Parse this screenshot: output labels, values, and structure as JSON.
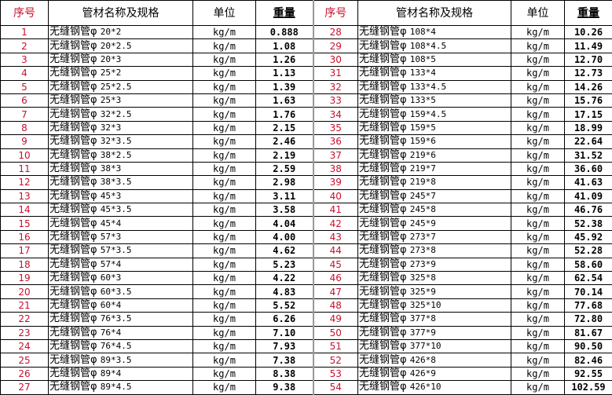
{
  "headers": {
    "seq": "序号",
    "name": "管材名称及规格",
    "unit": "单位",
    "weight": "重量"
  },
  "left": [
    {
      "seq": "1",
      "name": "无缝钢管φ",
      "spec": "20*2",
      "unit": "kg/m",
      "weight": "0.888"
    },
    {
      "seq": "2",
      "name": "无缝钢管φ",
      "spec": "20*2.5",
      "unit": "kg/m",
      "weight": "1.08"
    },
    {
      "seq": "3",
      "name": "无缝钢管φ",
      "spec": "20*3",
      "unit": "kg/m",
      "weight": "1.26"
    },
    {
      "seq": "4",
      "name": "无缝钢管φ",
      "spec": "25*2",
      "unit": "kg/m",
      "weight": "1.13"
    },
    {
      "seq": "5",
      "name": "无缝钢管φ",
      "spec": "25*2.5",
      "unit": "kg/m",
      "weight": "1.39"
    },
    {
      "seq": "6",
      "name": "无缝钢管φ",
      "spec": "25*3",
      "unit": "kg/m",
      "weight": "1.63"
    },
    {
      "seq": "7",
      "name": "无缝钢管φ",
      "spec": "32*2.5",
      "unit": "kg/m",
      "weight": "1.76"
    },
    {
      "seq": "8",
      "name": "无缝钢管φ",
      "spec": "32*3",
      "unit": "kg/m",
      "weight": "2.15"
    },
    {
      "seq": "9",
      "name": "无缝钢管φ",
      "spec": "32*3.5",
      "unit": "kg/m",
      "weight": "2.46"
    },
    {
      "seq": "10",
      "name": "无缝钢管φ",
      "spec": "38*2.5",
      "unit": "kg/m",
      "weight": "2.19"
    },
    {
      "seq": "11",
      "name": "无缝钢管φ",
      "spec": "38*3",
      "unit": "kg/m",
      "weight": "2.59"
    },
    {
      "seq": "12",
      "name": "无缝钢管φ",
      "spec": "38*3.5",
      "unit": "kg/m",
      "weight": "2.98"
    },
    {
      "seq": "13",
      "name": "无缝钢管φ",
      "spec": "45*3",
      "unit": "kg/m",
      "weight": "3.11"
    },
    {
      "seq": "14",
      "name": "无缝钢管φ",
      "spec": "45*3.5",
      "unit": "kg/m",
      "weight": "3.58"
    },
    {
      "seq": "15",
      "name": "无缝钢管φ",
      "spec": "45*4",
      "unit": "kg/m",
      "weight": "4.04"
    },
    {
      "seq": "16",
      "name": "无缝钢管φ",
      "spec": "57*3",
      "unit": "kg/m",
      "weight": "4.00"
    },
    {
      "seq": "17",
      "name": "无缝钢管φ",
      "spec": "57*3.5",
      "unit": "kg/m",
      "weight": "4.62"
    },
    {
      "seq": "18",
      "name": "无缝钢管φ",
      "spec": "57*4",
      "unit": "kg/m",
      "weight": "5.23"
    },
    {
      "seq": "19",
      "name": "无缝钢管φ",
      "spec": "60*3",
      "unit": "kg/m",
      "weight": "4.22"
    },
    {
      "seq": "20",
      "name": "无缝钢管φ",
      "spec": "60*3.5",
      "unit": "kg/m",
      "weight": "4.83"
    },
    {
      "seq": "21",
      "name": "无缝钢管φ",
      "spec": "60*4",
      "unit": "kg/m",
      "weight": "5.52"
    },
    {
      "seq": "22",
      "name": "无缝钢管φ",
      "spec": "76*3.5",
      "unit": "kg/m",
      "weight": "6.26"
    },
    {
      "seq": "23",
      "name": "无缝钢管φ",
      "spec": "76*4",
      "unit": "kg/m",
      "weight": "7.10"
    },
    {
      "seq": "24",
      "name": "无缝钢管φ",
      "spec": "76*4.5",
      "unit": "kg/m",
      "weight": "7.93"
    },
    {
      "seq": "25",
      "name": "无缝钢管φ",
      "spec": "89*3.5",
      "unit": "kg/m",
      "weight": "7.38"
    },
    {
      "seq": "26",
      "name": "无缝钢管φ",
      "spec": "89*4",
      "unit": "kg/m",
      "weight": "8.38"
    },
    {
      "seq": "27",
      "name": "无缝钢管φ",
      "spec": "89*4.5",
      "unit": "kg/m",
      "weight": "9.38"
    }
  ],
  "right": [
    {
      "seq": "28",
      "name": "无缝钢管φ",
      "spec": "108*4",
      "unit": "kg/m",
      "weight": "10.26"
    },
    {
      "seq": "29",
      "name": "无缝钢管φ",
      "spec": "108*4.5",
      "unit": "kg/m",
      "weight": "11.49"
    },
    {
      "seq": "30",
      "name": "无缝钢管φ",
      "spec": "108*5",
      "unit": "kg/m",
      "weight": "12.70"
    },
    {
      "seq": "31",
      "name": "无缝钢管φ",
      "spec": "133*4",
      "unit": "kg/m",
      "weight": "12.73"
    },
    {
      "seq": "32",
      "name": "无缝钢管φ",
      "spec": "133*4.5",
      "unit": "kg/m",
      "weight": "14.26"
    },
    {
      "seq": "33",
      "name": "无缝钢管φ",
      "spec": "133*5",
      "unit": "kg/m",
      "weight": "15.76"
    },
    {
      "seq": "34",
      "name": "无缝钢管φ",
      "spec": "159*4.5",
      "unit": "kg/m",
      "weight": "17.15"
    },
    {
      "seq": "35",
      "name": "无缝钢管φ",
      "spec": "159*5",
      "unit": "kg/m",
      "weight": "18.99"
    },
    {
      "seq": "36",
      "name": "无缝钢管φ",
      "spec": "159*6",
      "unit": "kg/m",
      "weight": "22.64"
    },
    {
      "seq": "37",
      "name": "无缝钢管φ",
      "spec": "219*6",
      "unit": "kg/m",
      "weight": "31.52"
    },
    {
      "seq": "38",
      "name": "无缝钢管φ",
      "spec": "219*7",
      "unit": "kg/m",
      "weight": "36.60"
    },
    {
      "seq": "39",
      "name": "无缝钢管φ",
      "spec": "219*8",
      "unit": "kg/m",
      "weight": "41.63"
    },
    {
      "seq": "40",
      "name": "无缝钢管φ",
      "spec": "245*7",
      "unit": "kg/m",
      "weight": "41.09"
    },
    {
      "seq": "41",
      "name": "无缝钢管φ",
      "spec": "245*8",
      "unit": "kg/m",
      "weight": "46.76"
    },
    {
      "seq": "42",
      "name": "无缝钢管φ",
      "spec": "245*9",
      "unit": "kg/m",
      "weight": "52.38"
    },
    {
      "seq": "43",
      "name": "无缝钢管φ",
      "spec": "273*7",
      "unit": "kg/m",
      "weight": "45.92"
    },
    {
      "seq": "44",
      "name": "无缝钢管φ",
      "spec": "273*8",
      "unit": "kg/m",
      "weight": "52.28"
    },
    {
      "seq": "45",
      "name": "无缝钢管φ",
      "spec": "273*9",
      "unit": "kg/m",
      "weight": "58.60"
    },
    {
      "seq": "46",
      "name": "无缝钢管φ",
      "spec": "325*8",
      "unit": "kg/m",
      "weight": "62.54"
    },
    {
      "seq": "47",
      "name": "无缝钢管φ",
      "spec": "325*9",
      "unit": "kg/m",
      "weight": "70.14"
    },
    {
      "seq": "48",
      "name": "无缝钢管φ",
      "spec": "325*10",
      "unit": "kg/m",
      "weight": "77.68"
    },
    {
      "seq": "49",
      "name": "无缝钢管φ",
      "spec": "377*8",
      "unit": "kg/m",
      "weight": "72.80"
    },
    {
      "seq": "50",
      "name": "无缝钢管φ",
      "spec": "377*9",
      "unit": "kg/m",
      "weight": "81.67"
    },
    {
      "seq": "51",
      "name": "无缝钢管φ",
      "spec": "377*10",
      "unit": "kg/m",
      "weight": "90.50"
    },
    {
      "seq": "52",
      "name": "无缝钢管φ",
      "spec": "426*8",
      "unit": "kg/m",
      "weight": "82.46"
    },
    {
      "seq": "53",
      "name": "无缝钢管φ",
      "spec": "426*9",
      "unit": "kg/m",
      "weight": "92.55"
    },
    {
      "seq": "54",
      "name": "无缝钢管φ",
      "spec": "426*10",
      "unit": "kg/m",
      "weight": "102.59"
    }
  ],
  "colors": {
    "seq_text": "#c8102e",
    "border": "#000000"
  }
}
